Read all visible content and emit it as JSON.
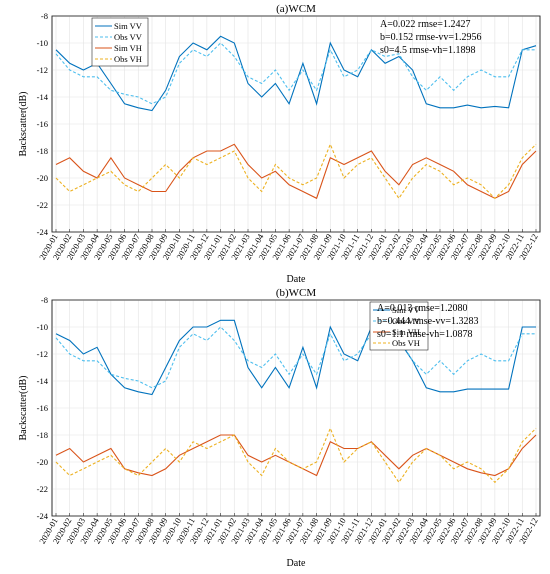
{
  "chart_data": [
    {
      "type": "line",
      "title": "(a)WCM",
      "xlabel": "Date",
      "ylabel": "Backscatter(dB)",
      "ylim": [
        -24,
        -8
      ],
      "yticks": [
        -24,
        -22,
        -20,
        -18,
        -16,
        -14,
        -12,
        -10,
        -8
      ],
      "xticks": [
        "2020-01",
        "2020-02",
        "2020-03",
        "2020-04",
        "2020-05",
        "2020-06",
        "2020-07",
        "2020-08",
        "2020-09",
        "2020-10",
        "2020-11",
        "2020-12",
        "2021-01",
        "2021-02",
        "2021-03",
        "2021-04",
        "2021-05",
        "2021-06",
        "2021-07",
        "2021-08",
        "2021-09",
        "2021-10",
        "2021-11",
        "2021-12",
        "2022-01",
        "2022-02",
        "2022-03",
        "2022-04",
        "2022-05",
        "2022-06",
        "2022-07",
        "2022-08",
        "2022-09",
        "2022-10",
        "2022-11",
        "2022-12"
      ],
      "grid": true,
      "legend_position": "top-left",
      "annotations": [
        "A=0.022  rmse=1.2427",
        "b=0.152  rmse-vv=1.2956",
        "s0=4.5   rmse-vh=1.1898"
      ],
      "series": [
        {
          "name": "Sim VV",
          "color": "#0072BD",
          "style": "solid",
          "x": [
            "2020-01",
            "2020-02",
            "2020-03",
            "2020-04",
            "2020-05",
            "2020-06",
            "2020-07",
            "2020-08",
            "2020-09",
            "2020-10",
            "2020-11",
            "2020-12",
            "2021-01",
            "2021-02",
            "2021-03",
            "2021-04",
            "2021-05",
            "2021-06",
            "2021-07",
            "2021-08",
            "2021-09",
            "2021-10",
            "2021-11",
            "2021-12",
            "2022-01",
            "2022-02",
            "2022-03",
            "2022-04",
            "2022-05",
            "2022-06",
            "2022-07",
            "2022-08",
            "2022-09",
            "2022-10",
            "2022-11",
            "2022-12"
          ],
          "values": [
            -10.5,
            -11.5,
            -12.0,
            -11.5,
            -13.0,
            -14.5,
            -14.8,
            -15.0,
            -13.5,
            -11.0,
            -10.0,
            -10.5,
            -9.5,
            -10.0,
            -13.0,
            -14.0,
            -13.0,
            -14.5,
            -11.5,
            -14.5,
            -10.0,
            -12.0,
            -12.5,
            -10.5,
            -11.5,
            -11.0,
            -12.0,
            -14.5,
            -14.8,
            -14.8,
            -14.6,
            -14.8,
            -14.7,
            -14.8,
            -10.5,
            -10.2
          ]
        },
        {
          "name": "Obs VV",
          "color": "#4DBEEE",
          "style": "dashed",
          "x": [
            "2020-01",
            "2020-02",
            "2020-03",
            "2020-04",
            "2020-05",
            "2020-06",
            "2020-07",
            "2020-08",
            "2020-09",
            "2020-10",
            "2020-11",
            "2020-12",
            "2021-01",
            "2021-02",
            "2021-03",
            "2021-04",
            "2021-05",
            "2021-06",
            "2021-07",
            "2021-08",
            "2021-09",
            "2021-10",
            "2021-11",
            "2021-12",
            "2022-01",
            "2022-02",
            "2022-03",
            "2022-04",
            "2022-05",
            "2022-06",
            "2022-07",
            "2022-08",
            "2022-09",
            "2022-10",
            "2022-11",
            "2022-12"
          ],
          "values": [
            -10.8,
            -12.0,
            -12.5,
            -12.5,
            -13.5,
            -13.8,
            -14.0,
            -14.5,
            -14.0,
            -11.5,
            -10.5,
            -11.0,
            -10.0,
            -11.0,
            -12.5,
            -13.0,
            -12.0,
            -13.5,
            -12.0,
            -13.5,
            -10.5,
            -12.5,
            -12.0,
            -10.5,
            -11.0,
            -10.8,
            -12.5,
            -13.5,
            -12.5,
            -13.5,
            -12.5,
            -12.0,
            -12.5,
            -12.5,
            -10.5,
            -10.5
          ]
        },
        {
          "name": "Sim VH",
          "color": "#D95319",
          "style": "solid",
          "x": [
            "2020-01",
            "2020-02",
            "2020-03",
            "2020-04",
            "2020-05",
            "2020-06",
            "2020-07",
            "2020-08",
            "2020-09",
            "2020-10",
            "2020-11",
            "2020-12",
            "2021-01",
            "2021-02",
            "2021-03",
            "2021-04",
            "2021-05",
            "2021-06",
            "2021-07",
            "2021-08",
            "2021-09",
            "2021-10",
            "2021-11",
            "2021-12",
            "2022-01",
            "2022-02",
            "2022-03",
            "2022-04",
            "2022-05",
            "2022-06",
            "2022-07",
            "2022-08",
            "2022-09",
            "2022-10",
            "2022-11",
            "2022-12"
          ],
          "values": [
            -19.0,
            -18.5,
            -19.5,
            -20.0,
            -18.5,
            -20.0,
            -20.5,
            -21.0,
            -21.0,
            -19.5,
            -18.5,
            -18.0,
            -18.0,
            -17.5,
            -19.0,
            -20.0,
            -19.5,
            -20.5,
            -21.0,
            -21.5,
            -18.5,
            -19.0,
            -18.5,
            -18.0,
            -19.5,
            -20.5,
            -19.0,
            -18.5,
            -19.0,
            -19.5,
            -20.5,
            -21.0,
            -21.5,
            -21.0,
            -19.0,
            -18.0
          ]
        },
        {
          "name": "Obs VH",
          "color": "#EDB120",
          "style": "dashed",
          "x": [
            "2020-01",
            "2020-02",
            "2020-03",
            "2020-04",
            "2020-05",
            "2020-06",
            "2020-07",
            "2020-08",
            "2020-09",
            "2020-10",
            "2020-11",
            "2020-12",
            "2021-01",
            "2021-02",
            "2021-03",
            "2021-04",
            "2021-05",
            "2021-06",
            "2021-07",
            "2021-08",
            "2021-09",
            "2021-10",
            "2021-11",
            "2021-12",
            "2022-01",
            "2022-02",
            "2022-03",
            "2022-04",
            "2022-05",
            "2022-06",
            "2022-07",
            "2022-08",
            "2022-09",
            "2022-10",
            "2022-11",
            "2022-12"
          ],
          "values": [
            -20.0,
            -21.0,
            -20.5,
            -20.0,
            -19.5,
            -20.5,
            -21.0,
            -20.0,
            -19.0,
            -20.0,
            -18.5,
            -19.0,
            -18.5,
            -18.0,
            -20.0,
            -21.0,
            -19.0,
            -20.0,
            -20.5,
            -20.0,
            -17.5,
            -20.0,
            -19.0,
            -18.5,
            -20.0,
            -21.5,
            -20.0,
            -19.0,
            -19.5,
            -20.5,
            -20.0,
            -20.5,
            -21.5,
            -20.5,
            -18.5,
            -17.5
          ]
        }
      ]
    },
    {
      "type": "line",
      "title": "(b)WCM",
      "xlabel": "Date",
      "ylabel": "Backscatter(dB)",
      "ylim": [
        -24,
        -8
      ],
      "yticks": [
        -24,
        -22,
        -20,
        -18,
        -16,
        -14,
        -12,
        -10,
        -8
      ],
      "xticks": [
        "2020-01",
        "2020-02",
        "2020-03",
        "2020-04",
        "2020-05",
        "2020-06",
        "2020-07",
        "2020-08",
        "2020-09",
        "2020-10",
        "2020-11",
        "2020-12",
        "2021-01",
        "2021-02",
        "2021-03",
        "2021-04",
        "2021-05",
        "2021-06",
        "2021-07",
        "2021-08",
        "2021-09",
        "2021-10",
        "2021-11",
        "2021-12",
        "2022-01",
        "2022-02",
        "2022-03",
        "2022-04",
        "2022-05",
        "2022-06",
        "2022-07",
        "2022-08",
        "2022-09",
        "2022-10",
        "2022-11",
        "2022-12"
      ],
      "grid": true,
      "legend_position": "top-right",
      "annotations": [
        "A=0.013  rmse=1.2080",
        "b=0.444  rmse-vv=1.3283",
        "s0=1.1   rmse-vh=1.0878"
      ],
      "series": [
        {
          "name": "Sim VV",
          "color": "#0072BD",
          "style": "solid",
          "x": [
            "2020-01",
            "2020-02",
            "2020-03",
            "2020-04",
            "2020-05",
            "2020-06",
            "2020-07",
            "2020-08",
            "2020-09",
            "2020-10",
            "2020-11",
            "2020-12",
            "2021-01",
            "2021-02",
            "2021-03",
            "2021-04",
            "2021-05",
            "2021-06",
            "2021-07",
            "2021-08",
            "2021-09",
            "2021-10",
            "2021-11",
            "2021-12",
            "2022-01",
            "2022-02",
            "2022-03",
            "2022-04",
            "2022-05",
            "2022-06",
            "2022-07",
            "2022-08",
            "2022-09",
            "2022-10",
            "2022-11",
            "2022-12"
          ],
          "values": [
            -10.5,
            -11.0,
            -12.0,
            -11.5,
            -13.5,
            -14.5,
            -14.8,
            -15.0,
            -13.0,
            -11.0,
            -10.0,
            -10.0,
            -9.5,
            -9.5,
            -13.0,
            -14.5,
            -13.0,
            -14.5,
            -11.5,
            -14.5,
            -10.0,
            -12.0,
            -12.5,
            -10.0,
            -11.5,
            -11.0,
            -12.5,
            -14.5,
            -14.8,
            -14.8,
            -14.6,
            -14.6,
            -14.6,
            -14.6,
            -10.0,
            -10.0
          ]
        },
        {
          "name": "Obs VV",
          "color": "#4DBEEE",
          "style": "dashed",
          "x": [
            "2020-01",
            "2020-02",
            "2020-03",
            "2020-04",
            "2020-05",
            "2020-06",
            "2020-07",
            "2020-08",
            "2020-09",
            "2020-10",
            "2020-11",
            "2020-12",
            "2021-01",
            "2021-02",
            "2021-03",
            "2021-04",
            "2021-05",
            "2021-06",
            "2021-07",
            "2021-08",
            "2021-09",
            "2021-10",
            "2021-11",
            "2021-12",
            "2022-01",
            "2022-02",
            "2022-03",
            "2022-04",
            "2022-05",
            "2022-06",
            "2022-07",
            "2022-08",
            "2022-09",
            "2022-10",
            "2022-11",
            "2022-12"
          ],
          "values": [
            -10.8,
            -12.0,
            -12.5,
            -12.5,
            -13.5,
            -13.8,
            -14.0,
            -14.5,
            -14.0,
            -11.5,
            -10.5,
            -11.0,
            -10.0,
            -11.0,
            -12.5,
            -13.0,
            -12.0,
            -13.5,
            -12.0,
            -13.5,
            -10.5,
            -12.5,
            -12.0,
            -10.5,
            -11.0,
            -10.8,
            -12.5,
            -13.5,
            -12.5,
            -13.5,
            -12.5,
            -12.0,
            -12.5,
            -12.5,
            -10.5,
            -10.5
          ]
        },
        {
          "name": "Sim VH",
          "color": "#D95319",
          "style": "solid",
          "x": [
            "2020-01",
            "2020-02",
            "2020-03",
            "2020-04",
            "2020-05",
            "2020-06",
            "2020-07",
            "2020-08",
            "2020-09",
            "2020-10",
            "2020-11",
            "2020-12",
            "2021-01",
            "2021-02",
            "2021-03",
            "2021-04",
            "2021-05",
            "2021-06",
            "2021-07",
            "2021-08",
            "2021-09",
            "2021-10",
            "2021-11",
            "2021-12",
            "2022-01",
            "2022-02",
            "2022-03",
            "2022-04",
            "2022-05",
            "2022-06",
            "2022-07",
            "2022-08",
            "2022-09",
            "2022-10",
            "2022-11",
            "2022-12"
          ],
          "values": [
            -19.5,
            -19.0,
            -20.0,
            -19.5,
            -19.0,
            -20.5,
            -20.8,
            -21.0,
            -20.5,
            -19.5,
            -19.0,
            -18.5,
            -18.0,
            -18.0,
            -19.5,
            -20.0,
            -19.5,
            -20.0,
            -20.5,
            -21.0,
            -18.5,
            -19.0,
            -19.0,
            -18.5,
            -19.5,
            -20.5,
            -19.5,
            -19.0,
            -19.5,
            -20.0,
            -20.5,
            -20.8,
            -21.0,
            -20.5,
            -19.0,
            -18.0
          ]
        },
        {
          "name": "Obs VH",
          "color": "#EDB120",
          "style": "dashed",
          "x": [
            "2020-01",
            "2020-02",
            "2020-03",
            "2020-04",
            "2020-05",
            "2020-06",
            "2020-07",
            "2020-08",
            "2020-09",
            "2020-10",
            "2020-11",
            "2020-12",
            "2021-01",
            "2021-02",
            "2021-03",
            "2021-04",
            "2021-05",
            "2021-06",
            "2021-07",
            "2021-08",
            "2021-09",
            "2021-10",
            "2021-11",
            "2021-12",
            "2022-01",
            "2022-02",
            "2022-03",
            "2022-04",
            "2022-05",
            "2022-06",
            "2022-07",
            "2022-08",
            "2022-09",
            "2022-10",
            "2022-11",
            "2022-12"
          ],
          "values": [
            -20.0,
            -21.0,
            -20.5,
            -20.0,
            -19.5,
            -20.5,
            -21.0,
            -20.0,
            -19.0,
            -20.0,
            -18.5,
            -19.0,
            -18.5,
            -18.0,
            -20.0,
            -21.0,
            -19.0,
            -20.0,
            -20.5,
            -20.0,
            -17.5,
            -20.0,
            -19.0,
            -18.5,
            -20.0,
            -21.5,
            -20.0,
            -19.0,
            -19.5,
            -20.5,
            -20.0,
            -20.5,
            -21.5,
            -20.5,
            -18.5,
            -17.5
          ]
        }
      ]
    }
  ]
}
